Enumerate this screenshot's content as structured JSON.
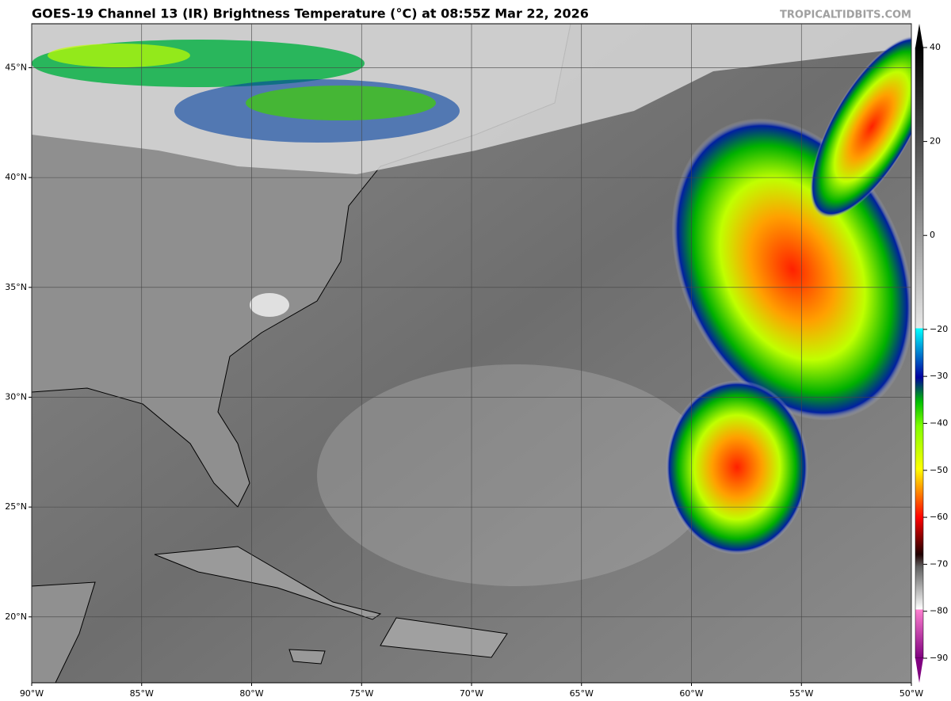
{
  "header": {
    "title": "GOES-19 Channel 13 (IR) Brightness Temperature (°C) at 08:55Z Mar 22, 2026",
    "credit": "TROPICALTIDBITS.COM"
  },
  "map": {
    "lonlim": [
      -90,
      -50
    ],
    "latlim": [
      17,
      47
    ],
    "lon_ticks": [
      {
        "value": -90,
        "label": "90°W"
      },
      {
        "value": -85,
        "label": "85°W"
      },
      {
        "value": -80,
        "label": "80°W"
      },
      {
        "value": -75,
        "label": "75°W"
      },
      {
        "value": -70,
        "label": "70°W"
      },
      {
        "value": -65,
        "label": "65°W"
      },
      {
        "value": -60,
        "label": "60°W"
      },
      {
        "value": -55,
        "label": "55°W"
      },
      {
        "value": -50,
        "label": "50°W"
      }
    ],
    "lat_ticks": [
      {
        "value": 45,
        "label": "45°N"
      },
      {
        "value": 40,
        "label": "40°N"
      },
      {
        "value": 35,
        "label": "35°N"
      },
      {
        "value": 30,
        "label": "30°N"
      },
      {
        "value": 25,
        "label": "25°N"
      },
      {
        "value": 20,
        "label": "20°N"
      }
    ]
  },
  "colorbar": {
    "ticks": [
      40,
      20,
      0,
      {
        "value": -20,
        "label": "−20"
      },
      {
        "value": -30,
        "label": "−30"
      },
      {
        "value": -40,
        "label": "−40"
      },
      {
        "value": -50,
        "label": "−50"
      },
      {
        "value": -60,
        "label": "−60"
      },
      {
        "value": -70,
        "label": "−70"
      },
      {
        "value": -80,
        "label": "−80"
      },
      {
        "value": -90,
        "label": "−90"
      }
    ]
  }
}
